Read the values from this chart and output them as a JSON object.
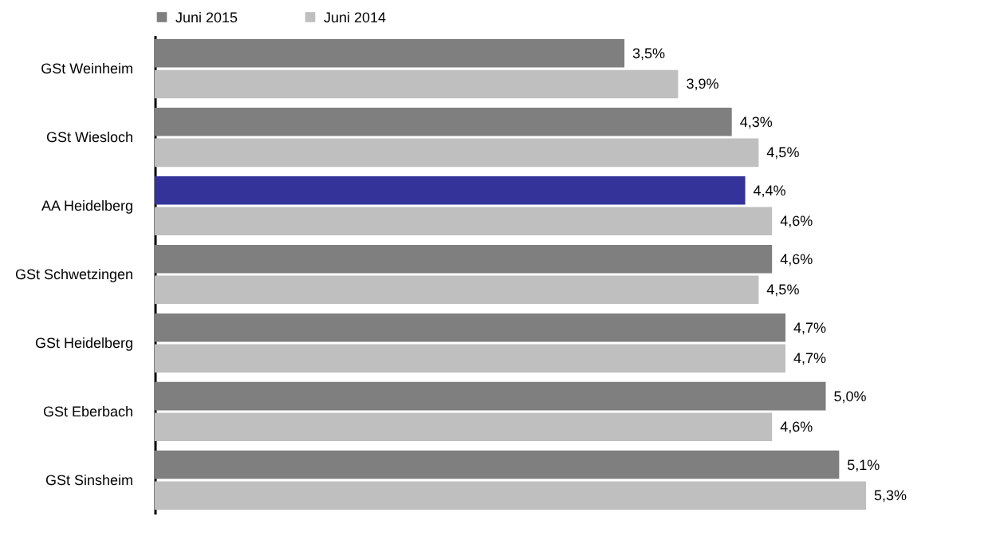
{
  "chart_data": {
    "type": "bar",
    "orientation": "horizontal",
    "legend": "top",
    "categories": [
      "GSt Weinheim",
      "GSt Wiesloch",
      "AA Heidelberg",
      "GSt Schwetzingen",
      "GSt Heidelberg",
      "GSt Eberbach",
      "GSt Sinsheim"
    ],
    "series": [
      {
        "name": "Juni 2015",
        "color": "#7f7f7f",
        "colors": [
          "#7f7f7f",
          "#7f7f7f",
          "#33339a",
          "#7f7f7f",
          "#7f7f7f",
          "#7f7f7f",
          "#7f7f7f"
        ],
        "values": [
          3.5,
          4.3,
          4.4,
          4.6,
          4.7,
          5.0,
          5.1
        ],
        "value_labels": [
          "3,5%",
          "4,3%",
          "4,4%",
          "4,6%",
          "4,7%",
          "5,0%",
          "5,1%"
        ]
      },
      {
        "name": "Juni 2014",
        "color": "#bfbfbf",
        "values": [
          3.9,
          4.5,
          4.6,
          4.5,
          4.7,
          4.6,
          5.3
        ],
        "value_labels": [
          "3,9%",
          "4,5%",
          "4,6%",
          "4,5%",
          "4,7%",
          "4,6%",
          "5,3%"
        ]
      }
    ]
  }
}
